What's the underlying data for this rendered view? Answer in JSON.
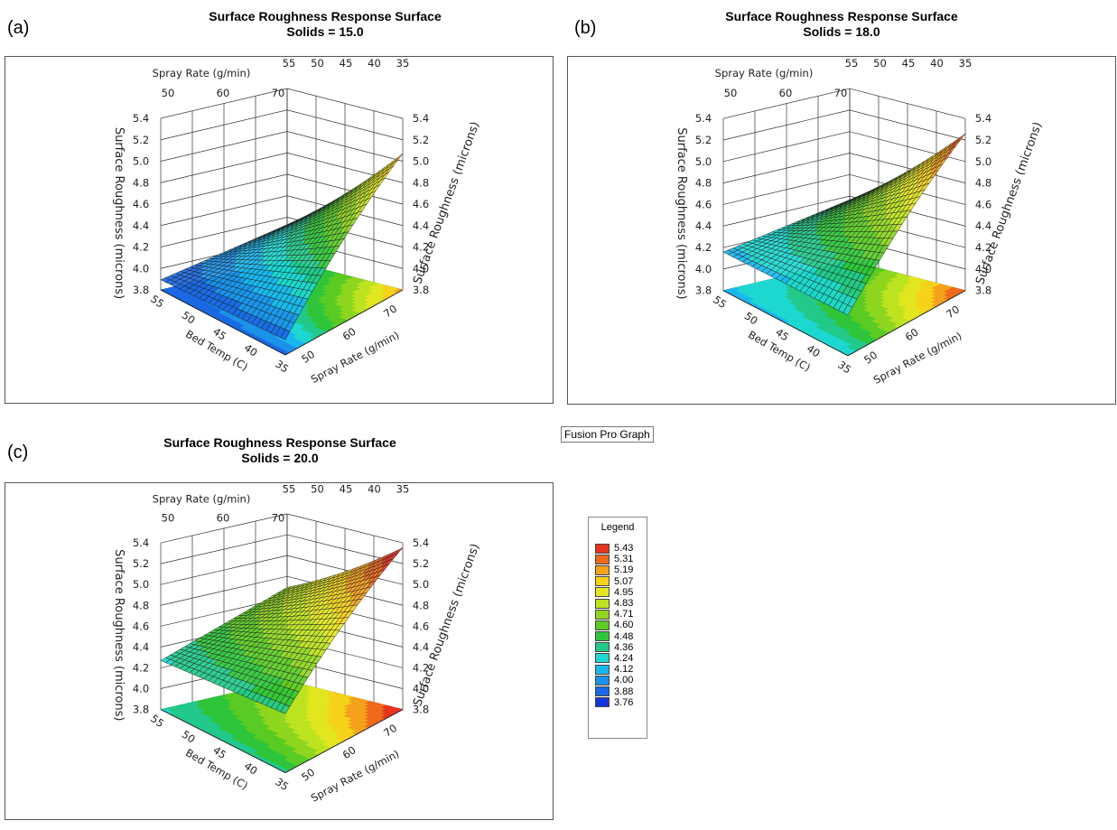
{
  "fusion_label": "Fusion Pro Graph",
  "legend": {
    "title": "Legend",
    "levels": [
      "5.43",
      "5.31",
      "5.19",
      "5.07",
      "4.95",
      "4.83",
      "4.71",
      "4.60",
      "4.48",
      "4.36",
      "4.24",
      "4.12",
      "4.00",
      "3.88",
      "3.76"
    ],
    "colors": [
      "#e8341f",
      "#ef6a1c",
      "#f5a21a",
      "#f6d21a",
      "#e2e61f",
      "#bde320",
      "#8ed61f",
      "#5acb24",
      "#2fc53a",
      "#22c98a",
      "#1dd8d0",
      "#19b7ee",
      "#1b92ea",
      "#1a68e3",
      "#1733dc"
    ]
  },
  "chart_data": [
    {
      "type": "surface3d",
      "panel_label": "(a)",
      "title": "Surface Roughness Response Surface",
      "subtitle": "Solids = 15.0",
      "x_axis": {
        "label": "Spray Rate (g/min)",
        "ticks": [
          "50",
          "60",
          "70"
        ],
        "range": [
          45,
          75
        ]
      },
      "y_axis": {
        "label": "Bed Temp (C)",
        "ticks": [
          "55",
          "50",
          "45",
          "40",
          "35"
        ],
        "range": [
          35,
          55
        ]
      },
      "z_axis": {
        "label": "Surface Roughness (microns)",
        "ticks": [
          "3.8",
          "4.0",
          "4.2",
          "4.4",
          "4.6",
          "4.8",
          "5.0",
          "5.2",
          "5.4"
        ],
        "range": [
          3.8,
          5.5
        ]
      },
      "surface_corners": {
        "spray_min_temp_max": 3.9,
        "spray_min_temp_min": 3.95,
        "spray_max_temp_max": 4.15,
        "spray_max_temp_min": 5.15
      }
    },
    {
      "type": "surface3d",
      "panel_label": "(b)",
      "title": "Surface Roughness Response Surface",
      "subtitle": "Solids = 18.0",
      "x_axis": {
        "label": "Spray Rate (g/min)",
        "ticks": [
          "50",
          "60",
          "70"
        ],
        "range": [
          45,
          75
        ]
      },
      "y_axis": {
        "label": "Bed Temp (C)",
        "ticks": [
          "55",
          "50",
          "45",
          "40",
          "35"
        ],
        "range": [
          35,
          55
        ]
      },
      "z_axis": {
        "label": "Surface Roughness (microns)",
        "ticks": [
          "3.8",
          "4.0",
          "4.2",
          "4.4",
          "4.6",
          "4.8",
          "5.0",
          "5.2",
          "5.4"
        ],
        "range": [
          3.8,
          5.5
        ]
      },
      "surface_corners": {
        "spray_min_temp_max": 4.18,
        "spray_min_temp_min": 4.2,
        "spray_max_temp_max": 4.4,
        "spray_max_temp_min": 5.35
      }
    },
    {
      "type": "surface3d",
      "panel_label": "(c)",
      "title": "Surface Roughness Response Surface",
      "subtitle": "Solids = 20.0",
      "x_axis": {
        "label": "Spray Rate (g/min)",
        "ticks": [
          "50",
          "60",
          "70"
        ],
        "range": [
          45,
          75
        ]
      },
      "y_axis": {
        "label": "Bed Temp (C)",
        "ticks": [
          "55",
          "50",
          "45",
          "40",
          "35"
        ],
        "range": [
          35,
          55
        ]
      },
      "z_axis": {
        "label": "Surface Roughness (microns)",
        "ticks": [
          "3.8",
          "4.0",
          "4.2",
          "4.4",
          "4.6",
          "4.8",
          "5.0",
          "5.2",
          "5.4"
        ],
        "range": [
          3.8,
          5.5
        ]
      },
      "surface_corners": {
        "spray_min_temp_max": 4.3,
        "spray_min_temp_min": 4.4,
        "spray_max_temp_max": 4.75,
        "spray_max_temp_min": 5.45
      }
    }
  ]
}
